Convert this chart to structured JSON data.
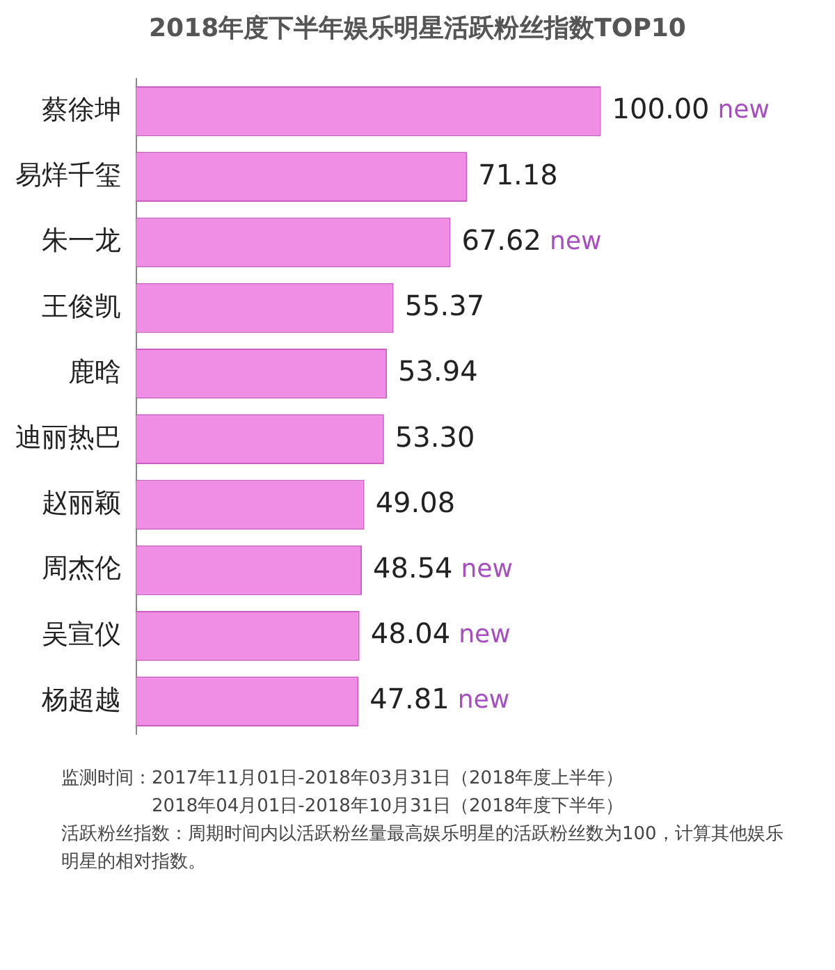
{
  "chart_data": {
    "type": "bar",
    "orientation": "horizontal",
    "title": "2018年度下半年娱乐明星活跃粉丝指数TOP10",
    "categories": [
      "蔡徐坤",
      "易烊千玺",
      "朱一龙",
      "王俊凯",
      "鹿晗",
      "迪丽热巴",
      "赵丽颖",
      "周杰伦",
      "吴宣仪",
      "杨超越"
    ],
    "values": [
      100.0,
      71.18,
      67.62,
      55.37,
      53.94,
      53.3,
      49.08,
      48.54,
      48.04,
      47.81
    ],
    "color": "#f08ee6",
    "value_labels": [
      "100.00 new",
      "71.18",
      "67.62 new",
      "55.37",
      "53.94",
      "53.30",
      "49.08",
      "48.54 new",
      "48.04 new",
      "47.81 new"
    ],
    "annotations": [
      "监测时间：2017年11月01日-2018年03月31日（2018年度上半年）\n　　　　　2018年04月01日-2018年10月31日（2018年度下半年）",
      "活跃粉丝指数：周期时间内以活跃粉丝量最高娱乐明星的活跃粉丝数为100，计算其他娱乐明星的相对指数。"
    ]
  }
}
